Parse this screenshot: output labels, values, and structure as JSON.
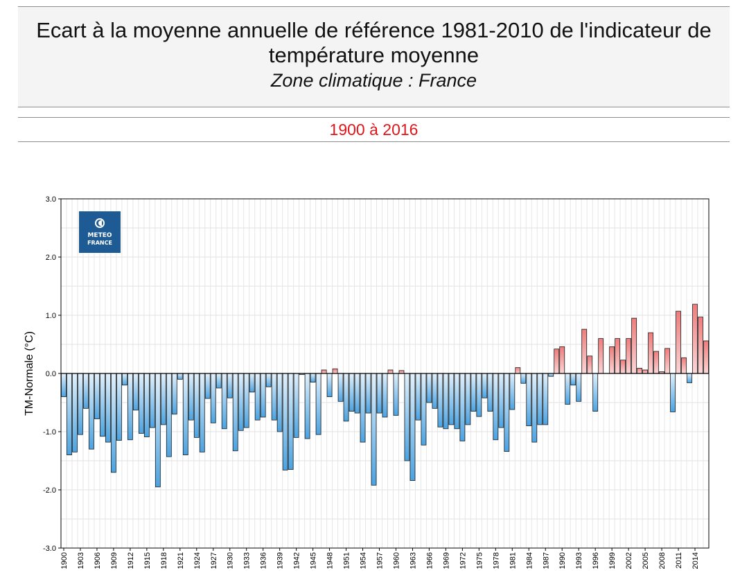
{
  "header": {
    "title_line1": "Ecart à la moyenne annuelle de référence 1981-2010 de l'indicateur de",
    "title_line2": "température moyenne",
    "subtitle": "Zone climatique : France",
    "period": "1900 à 2016"
  },
  "logo": {
    "line1": "METEO",
    "line2": "FRANCE"
  },
  "colors": {
    "positive": "#f08a8a",
    "negative": "#5aafe8",
    "title_period": "#e0151a"
  },
  "chart_data": {
    "type": "bar",
    "ylabel": "TM-Normale (°C)",
    "xlabel": "",
    "ylim": [
      -3.0,
      3.0
    ],
    "yticks": [
      "-3.0",
      "-2.0",
      "-1.0",
      "0.0",
      "1.0",
      "2.0",
      "3.0"
    ],
    "xtick_labels": [
      "1900",
      "1903",
      "1906",
      "1909",
      "1912",
      "1915",
      "1918",
      "1921",
      "1924",
      "1927",
      "1930",
      "1933",
      "1936",
      "1939",
      "1942",
      "1945",
      "1948",
      "1951",
      "1954",
      "1957",
      "1960",
      "1963",
      "1966",
      "1969",
      "1972",
      "1975",
      "1978",
      "1981",
      "1984",
      "1987",
      "1990",
      "1993",
      "1996",
      "1999",
      "2002",
      "2005",
      "2008",
      "2011",
      "2014"
    ],
    "grid": true,
    "start_year": 1900,
    "values": [
      -0.4,
      -1.4,
      -1.35,
      -1.05,
      -0.6,
      -1.3,
      -0.78,
      -1.08,
      -1.18,
      -1.7,
      -1.15,
      -0.2,
      -1.14,
      -0.63,
      -1.03,
      -1.09,
      -0.93,
      -1.95,
      -0.88,
      -1.43,
      -0.7,
      -0.1,
      -1.4,
      -0.8,
      -1.1,
      -1.35,
      -0.43,
      -0.85,
      -0.25,
      -0.95,
      -0.42,
      -1.33,
      -0.98,
      -0.93,
      -0.32,
      -0.8,
      -0.75,
      -0.23,
      -0.8,
      -1.0,
      -1.66,
      -1.65,
      -1.1,
      -0.02,
      -1.12,
      -0.15,
      -1.05,
      0.06,
      -0.4,
      0.08,
      -0.48,
      -0.82,
      -0.65,
      -0.68,
      -1.18,
      -0.68,
      -1.92,
      -0.68,
      -0.75,
      0.06,
      -0.72,
      0.05,
      -1.5,
      -1.84,
      -0.8,
      -1.23,
      -0.5,
      -0.6,
      -0.92,
      -0.95,
      -0.88,
      -0.95,
      -1.16,
      -0.88,
      -0.65,
      -0.74,
      -0.42,
      -0.65,
      -1.14,
      -0.93,
      -1.34,
      -0.62,
      0.1,
      -0.17,
      -0.9,
      -1.18,
      -0.88,
      -0.88,
      -0.05,
      0.42,
      0.46,
      -0.53,
      -0.2,
      -0.48,
      0.76,
      0.3,
      -0.65,
      0.6,
      0.0,
      0.46,
      0.6,
      0.23,
      0.6,
      0.95,
      0.09,
      0.06,
      0.7,
      0.38,
      0.03,
      0.43,
      -0.66,
      1.07,
      0.27,
      -0.16,
      1.19,
      0.97,
      0.56
    ]
  }
}
